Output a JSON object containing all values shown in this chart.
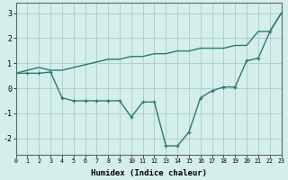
{
  "x": [
    0,
    1,
    2,
    3,
    4,
    5,
    6,
    7,
    8,
    9,
    10,
    11,
    12,
    13,
    14,
    15,
    16,
    17,
    18,
    19,
    20,
    21,
    22,
    23
  ],
  "line1": [
    0.6,
    0.72,
    0.83,
    0.72,
    0.72,
    0.83,
    0.94,
    1.05,
    1.16,
    1.16,
    1.27,
    1.27,
    1.38,
    1.38,
    1.49,
    1.49,
    1.6,
    1.6,
    1.6,
    1.71,
    1.71,
    2.27,
    2.27,
    3.0
  ],
  "line2": [
    0.6,
    0.6,
    0.6,
    0.65,
    -0.38,
    -0.5,
    -0.5,
    -0.5,
    -0.5,
    -0.5,
    -1.15,
    -0.55,
    -0.55,
    -2.3,
    -2.3,
    -1.75,
    -0.38,
    -0.1,
    0.05,
    0.05,
    1.1,
    1.2,
    2.25,
    3.0
  ],
  "line_color": "#2d7a6e",
  "bg_color": "#d4eeec",
  "grid_color": "#b0d0ce",
  "xlabel": "Humidex (Indice chaleur)",
  "yticks": [
    -2,
    -1,
    0,
    1,
    2,
    3
  ],
  "xtick_labels": [
    "0",
    "1",
    "2",
    "3",
    "4",
    "5",
    "6",
    "7",
    "8",
    "9",
    "10",
    "11",
    "12",
    "13",
    "14",
    "15",
    "16",
    "17",
    "18",
    "19",
    "20",
    "21",
    "22",
    "23"
  ],
  "ylim": [
    -2.65,
    3.4
  ],
  "xlim": [
    0,
    23
  ]
}
